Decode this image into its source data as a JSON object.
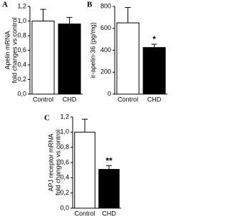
{
  "chart_data": [
    {
      "type": "bar",
      "label": "A",
      "ylabel": [
        "Apelin mRNA",
        "fold changes vs.control"
      ],
      "categories": [
        "Control",
        "CHD"
      ],
      "values": [
        1.0,
        0.96
      ],
      "errors": [
        0.16,
        0.09
      ],
      "colors": [
        "#ffffff",
        "#000000"
      ],
      "ylim": [
        0,
        1.2
      ],
      "yticks": [
        {
          "value": 0,
          "label": "0,0"
        },
        {
          "value": 0.2,
          "label": "0,2"
        },
        {
          "value": 0.4,
          "label": "0,4"
        },
        {
          "value": 0.6,
          "label": "0,6"
        },
        {
          "value": 0.8,
          "label": "0,8"
        },
        {
          "value": 1.0,
          "label": "1,0"
        },
        {
          "value": 1.2,
          "label": "1,2"
        }
      ]
    },
    {
      "type": "bar",
      "label": "B",
      "ylabel": [
        "ir-apelin-36 (pg/mg)"
      ],
      "categories": [
        "Control",
        "CHD"
      ],
      "values": [
        650,
        425
      ],
      "errors": [
        140,
        30
      ],
      "colors": [
        "#ffffff",
        "#000000"
      ],
      "annotations": [
        {
          "category": "CHD",
          "text": "*"
        }
      ],
      "ylim": [
        0,
        800
      ],
      "yticks": [
        0,
        200,
        400,
        600,
        800
      ]
    },
    {
      "type": "bar",
      "label": "C",
      "ylabel": [
        "APJ receptor mRNA",
        "fold changes vs.control"
      ],
      "categories": [
        "Control",
        "CHD"
      ],
      "values": [
        1.0,
        0.51
      ],
      "errors": [
        0.17,
        0.05
      ],
      "colors": [
        "#ffffff",
        "#000000"
      ],
      "annotations": [
        {
          "category": "CHD",
          "text": "**"
        }
      ],
      "ylim": [
        0,
        1.2
      ],
      "yticks": [
        {
          "value": 0,
          "label": "0,0"
        },
        {
          "value": 0.2,
          "label": "0,2"
        },
        {
          "value": 0.4,
          "label": "0,4"
        },
        {
          "value": 0.6,
          "label": "0,6"
        },
        {
          "value": 0.8,
          "label": "0,8"
        },
        {
          "value": 1.0,
          "label": "1,0"
        },
        {
          "value": 1.2,
          "label": "1,2"
        }
      ]
    }
  ]
}
